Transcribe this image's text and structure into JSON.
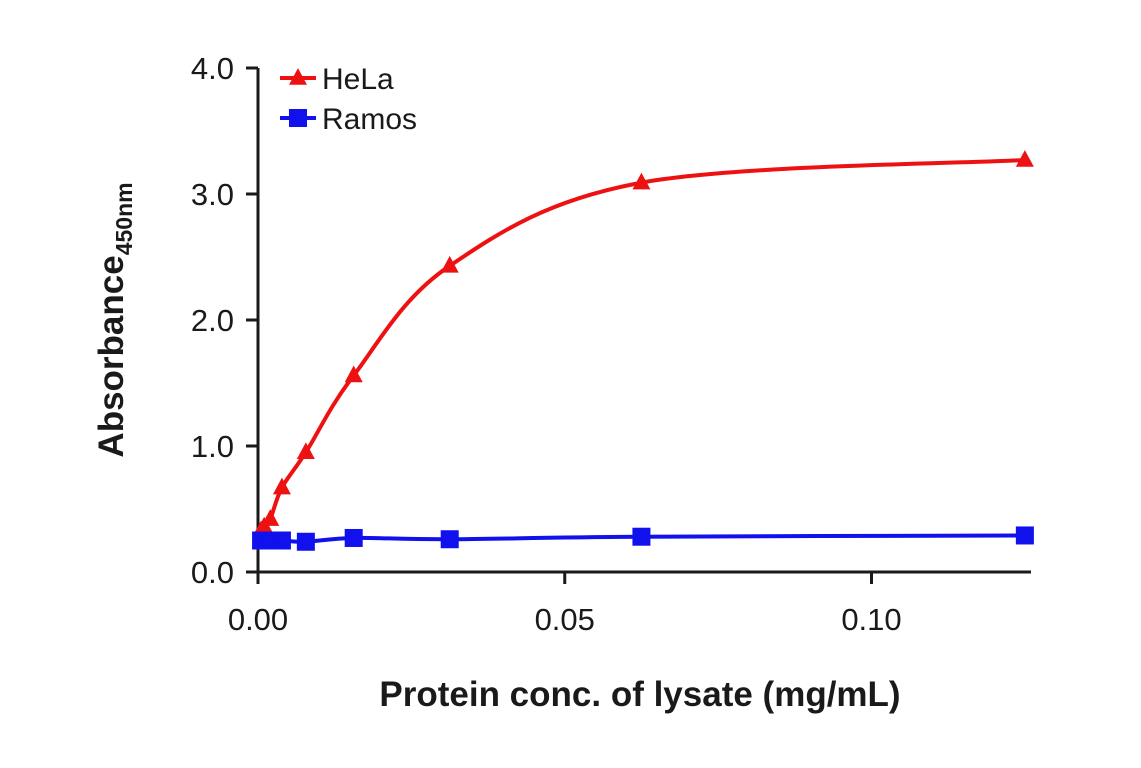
{
  "chart_data": {
    "type": "line",
    "title": "",
    "xlabel": "Protein conc. of lysate (mg/mL)",
    "ylabel": "Absorbance",
    "ylabel_subscript": "450nm",
    "xlim": [
      0,
      0.126
    ],
    "ylim": [
      0,
      4.0
    ],
    "x_ticks": [
      0.0,
      0.05,
      0.1
    ],
    "x_tick_labels": [
      "0.00",
      "0.05",
      "0.10"
    ],
    "y_ticks": [
      0.0,
      1.0,
      2.0,
      3.0,
      4.0
    ],
    "y_tick_labels": [
      "0.0",
      "1.0",
      "2.0",
      "3.0",
      "4.0"
    ],
    "grid": false,
    "legend": "top-left",
    "series": [
      {
        "name": "HeLa",
        "color": "#ee1111",
        "marker": "triangle",
        "x": [
          0.0005,
          0.001,
          0.002,
          0.0039,
          0.0078,
          0.0156,
          0.03125,
          0.0625,
          0.125
        ],
        "y": [
          0.33,
          0.36,
          0.42,
          0.67,
          0.95,
          1.56,
          2.43,
          3.09,
          3.27
        ]
      },
      {
        "name": "Ramos",
        "color": "#1111ee",
        "marker": "square",
        "x": [
          0.0005,
          0.001,
          0.002,
          0.0039,
          0.0078,
          0.0156,
          0.03125,
          0.0625,
          0.125
        ],
        "y": [
          0.25,
          0.25,
          0.25,
          0.25,
          0.24,
          0.27,
          0.26,
          0.28,
          0.29
        ]
      }
    ]
  }
}
